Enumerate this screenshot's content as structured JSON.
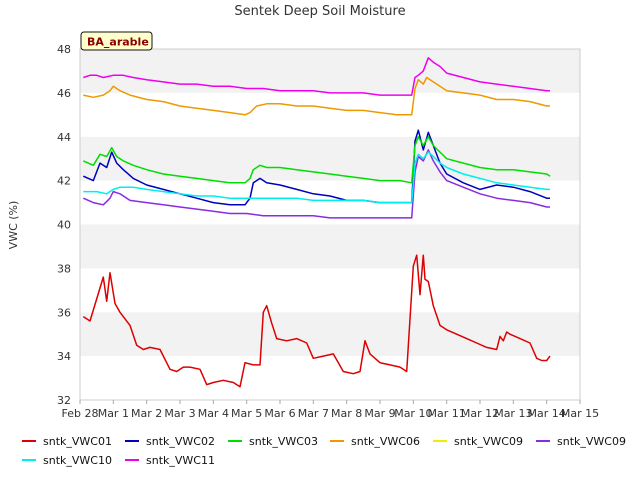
{
  "chart_data": {
    "type": "line",
    "title": "Sentek Deep Soil Moisture",
    "ylabel": "VWC (%)",
    "xlabel": "",
    "badge": "BA_arable",
    "x_tick_labels": [
      "Feb 28",
      "Mar 1",
      "Mar 2",
      "Mar 3",
      "Mar 4",
      "Mar 5",
      "Mar 6",
      "Mar 7",
      "Mar 8",
      "Mar 9",
      "Mar 10",
      "Mar 11",
      "Mar 12",
      "Mar 13",
      "Mar 14",
      "Mar 15"
    ],
    "y_ticks": [
      32,
      34,
      36,
      38,
      40,
      42,
      44,
      46,
      48
    ],
    "ylim": [
      32,
      48
    ],
    "xlim": [
      0,
      15
    ],
    "grid": "alternating horizontal bands",
    "legend_placement": "bottom",
    "series": [
      {
        "name": "sntk_VWC01",
        "color": "#dd0000",
        "x": [
          0.1,
          0.3,
          0.7,
          0.8,
          0.9,
          1.05,
          1.2,
          1.5,
          1.7,
          1.9,
          2.1,
          2.4,
          2.7,
          2.9,
          3.1,
          3.3,
          3.6,
          3.8,
          4.0,
          4.3,
          4.6,
          4.8,
          4.95,
          5.2,
          5.4,
          5.5,
          5.6,
          5.75,
          5.9,
          6.2,
          6.5,
          6.8,
          7.0,
          7.3,
          7.6,
          7.9,
          8.2,
          8.4,
          8.55,
          8.7,
          9.0,
          9.3,
          9.6,
          9.8,
          10.0,
          10.1,
          10.2,
          10.3,
          10.35,
          10.45,
          10.6,
          10.8,
          11.0,
          11.3,
          11.6,
          11.9,
          12.2,
          12.5,
          12.6,
          12.7,
          12.8,
          12.9,
          13.2,
          13.5,
          13.7,
          13.85,
          14.0,
          14.1
        ],
        "values": [
          35.8,
          35.6,
          37.6,
          36.5,
          37.8,
          36.4,
          36.0,
          35.4,
          34.5,
          34.3,
          34.4,
          34.3,
          33.4,
          33.3,
          33.5,
          33.5,
          33.4,
          32.7,
          32.8,
          32.9,
          32.8,
          32.6,
          33.7,
          33.6,
          33.6,
          36.0,
          36.3,
          35.5,
          34.8,
          34.7,
          34.8,
          34.6,
          33.9,
          34.0,
          34.1,
          33.3,
          33.2,
          33.3,
          34.7,
          34.1,
          33.7,
          33.6,
          33.5,
          33.3,
          38.1,
          38.6,
          36.8,
          38.6,
          37.5,
          37.4,
          36.3,
          35.4,
          35.2,
          35.0,
          34.8,
          34.6,
          34.4,
          34.3,
          34.9,
          34.7,
          35.1,
          35.0,
          34.8,
          34.6,
          33.9,
          33.8,
          33.8,
          34.0
        ]
      },
      {
        "name": "sntk_VWC02",
        "color": "#0000bb",
        "x": [
          0.1,
          0.4,
          0.6,
          0.8,
          0.95,
          1.1,
          1.3,
          1.6,
          2.0,
          2.5,
          3.0,
          3.5,
          4.0,
          4.5,
          4.95,
          5.1,
          5.2,
          5.4,
          5.6,
          6.0,
          6.5,
          7.0,
          7.5,
          8.0,
          8.5,
          9.0,
          9.6,
          9.95,
          10.05,
          10.15,
          10.3,
          10.45,
          10.6,
          10.8,
          11.0,
          11.5,
          12.0,
          12.5,
          13.0,
          13.5,
          14.0,
          14.1
        ],
        "values": [
          42.2,
          42.0,
          42.8,
          42.6,
          43.3,
          42.8,
          42.5,
          42.1,
          41.8,
          41.6,
          41.4,
          41.2,
          41.0,
          40.9,
          40.9,
          41.2,
          41.9,
          42.1,
          41.9,
          41.8,
          41.6,
          41.4,
          41.3,
          41.1,
          41.1,
          41.0,
          41.0,
          41.0,
          43.8,
          44.3,
          43.4,
          44.2,
          43.6,
          42.8,
          42.3,
          41.9,
          41.6,
          41.8,
          41.7,
          41.5,
          41.2,
          41.2
        ]
      },
      {
        "name": "sntk_VWC03",
        "color": "#00dd00",
        "x": [
          0.1,
          0.4,
          0.6,
          0.8,
          0.95,
          1.1,
          1.3,
          1.6,
          2.0,
          2.5,
          3.0,
          3.5,
          4.0,
          4.5,
          4.95,
          5.1,
          5.2,
          5.4,
          5.6,
          6.0,
          6.5,
          7.0,
          7.5,
          8.0,
          8.5,
          9.0,
          9.6,
          9.95,
          10.05,
          10.15,
          10.3,
          10.45,
          10.6,
          10.8,
          11.0,
          11.5,
          12.0,
          12.5,
          13.0,
          13.5,
          14.0,
          14.1
        ],
        "values": [
          42.9,
          42.7,
          43.2,
          43.1,
          43.5,
          43.1,
          42.9,
          42.7,
          42.5,
          42.3,
          42.2,
          42.1,
          42.0,
          41.9,
          41.9,
          42.1,
          42.5,
          42.7,
          42.6,
          42.6,
          42.5,
          42.4,
          42.3,
          42.2,
          42.1,
          42.0,
          42.0,
          41.9,
          43.6,
          44.0,
          43.6,
          44.0,
          43.6,
          43.3,
          43.0,
          42.8,
          42.6,
          42.5,
          42.5,
          42.4,
          42.3,
          42.2
        ]
      },
      {
        "name": "sntk_VWC06",
        "color": "#ee9900",
        "x": [
          0.1,
          0.4,
          0.7,
          0.9,
          1.0,
          1.2,
          1.5,
          2.0,
          2.5,
          3.0,
          3.5,
          4.0,
          4.5,
          4.95,
          5.1,
          5.3,
          5.6,
          6.0,
          6.5,
          7.0,
          7.5,
          8.0,
          8.5,
          9.0,
          9.5,
          9.95,
          10.05,
          10.15,
          10.3,
          10.4,
          10.6,
          10.8,
          11.0,
          11.5,
          12.0,
          12.5,
          13.0,
          13.5,
          14.0,
          14.1
        ],
        "values": [
          45.9,
          45.8,
          45.9,
          46.1,
          46.3,
          46.1,
          45.9,
          45.7,
          45.6,
          45.4,
          45.3,
          45.2,
          45.1,
          45.0,
          45.1,
          45.4,
          45.5,
          45.5,
          45.4,
          45.4,
          45.3,
          45.2,
          45.2,
          45.1,
          45.0,
          45.0,
          46.2,
          46.6,
          46.4,
          46.7,
          46.5,
          46.3,
          46.1,
          46.0,
          45.9,
          45.7,
          45.7,
          45.6,
          45.4,
          45.4
        ]
      },
      {
        "name": "sntk_VWC09",
        "color": "#eeee00",
        "x": [],
        "values": []
      },
      {
        "name": "sntk_VWC09",
        "color": "#8a2be2",
        "x": [
          0.1,
          0.4,
          0.7,
          0.9,
          1.0,
          1.2,
          1.5,
          2.0,
          2.5,
          3.0,
          3.5,
          4.0,
          4.5,
          5.0,
          5.5,
          6.0,
          6.5,
          7.0,
          7.5,
          8.0,
          8.5,
          9.0,
          9.5,
          9.95,
          10.05,
          10.15,
          10.3,
          10.45,
          10.6,
          10.8,
          11.0,
          11.5,
          12.0,
          12.5,
          13.0,
          13.5,
          14.0,
          14.1
        ],
        "values": [
          41.2,
          41.0,
          40.9,
          41.2,
          41.5,
          41.4,
          41.1,
          41.0,
          40.9,
          40.8,
          40.7,
          40.6,
          40.5,
          40.5,
          40.4,
          40.4,
          40.4,
          40.4,
          40.3,
          40.3,
          40.3,
          40.3,
          40.3,
          40.3,
          42.4,
          43.1,
          42.9,
          43.4,
          42.9,
          42.4,
          42.0,
          41.7,
          41.4,
          41.2,
          41.1,
          41.0,
          40.8,
          40.8
        ]
      },
      {
        "name": "sntk_VWC10",
        "color": "#00eeee",
        "x": [
          0.1,
          0.5,
          0.8,
          1.0,
          1.2,
          1.6,
          2.0,
          2.5,
          3.0,
          3.5,
          4.0,
          4.5,
          5.0,
          5.5,
          6.0,
          6.5,
          7.0,
          7.5,
          8.0,
          8.5,
          9.0,
          9.5,
          9.95,
          10.05,
          10.15,
          10.3,
          10.45,
          10.6,
          10.8,
          11.0,
          11.5,
          12.0,
          12.5,
          13.0,
          13.5,
          14.0,
          14.1
        ],
        "values": [
          41.5,
          41.5,
          41.4,
          41.6,
          41.7,
          41.7,
          41.6,
          41.5,
          41.4,
          41.3,
          41.3,
          41.2,
          41.2,
          41.2,
          41.2,
          41.2,
          41.1,
          41.1,
          41.1,
          41.1,
          41.0,
          41.0,
          41.0,
          42.8,
          43.2,
          43.0,
          43.3,
          43.1,
          42.8,
          42.6,
          42.3,
          42.1,
          41.9,
          41.8,
          41.7,
          41.6,
          41.6
        ]
      },
      {
        "name": "sntk_VWC11",
        "color": "#ee00ee",
        "x": [
          0.1,
          0.3,
          0.5,
          0.7,
          1.0,
          1.3,
          1.6,
          2.0,
          2.5,
          3.0,
          3.5,
          4.0,
          4.5,
          5.0,
          5.5,
          6.0,
          6.5,
          7.0,
          7.5,
          8.0,
          8.5,
          9.0,
          9.5,
          9.95,
          10.05,
          10.15,
          10.3,
          10.45,
          10.6,
          10.8,
          11.0,
          11.5,
          12.0,
          12.5,
          13.0,
          13.5,
          14.0,
          14.1
        ],
        "values": [
          46.7,
          46.8,
          46.8,
          46.7,
          46.8,
          46.8,
          46.7,
          46.6,
          46.5,
          46.4,
          46.4,
          46.3,
          46.3,
          46.2,
          46.2,
          46.1,
          46.1,
          46.1,
          46.0,
          46.0,
          46.0,
          45.9,
          45.9,
          45.9,
          46.7,
          46.8,
          47.0,
          47.6,
          47.4,
          47.2,
          46.9,
          46.7,
          46.5,
          46.4,
          46.3,
          46.2,
          46.1,
          46.1
        ]
      }
    ]
  }
}
